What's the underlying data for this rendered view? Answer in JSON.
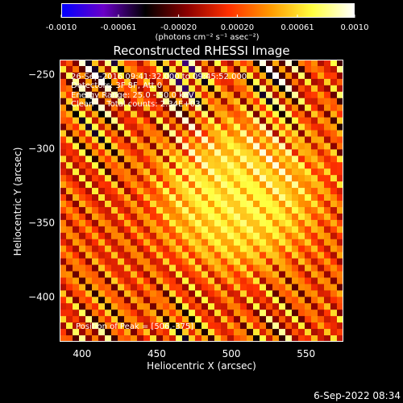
{
  "colorbar": {
    "tick_labels": [
      "-0.0010",
      "-0.00061",
      "-0.00020",
      "0.00020",
      "0.00061",
      "0.0010"
    ],
    "tick_values": [
      -0.001,
      -0.00061,
      -0.0002,
      0.0002,
      0.00061,
      0.001
    ],
    "range": [
      -0.001,
      0.001
    ],
    "units_text": "(photons cm⁻² s⁻¹ asec⁻²)",
    "colors": [
      "#0000ff",
      "#6a00c8",
      "#000000",
      "#8b0000",
      "#ff3000",
      "#ff9a00",
      "#ffff40",
      "#ffffff"
    ]
  },
  "title": "Reconstructed RHESSI Image",
  "annotations": {
    "time_range": "26-Sep-2016 09:41:32.000 to 09:45:52.000",
    "detectors": "Detectors: 3F 8F, Att 0",
    "energy": "Energy Range: 25.0 - 50.0 keV",
    "clean": "Clean     Total counts: 2.34E+03",
    "peak": "Position of Peak = [506,-375]"
  },
  "footer_timestamp": "6-Sep-2022 08:34",
  "chart_data": {
    "type": "heatmap",
    "title": "Reconstructed RHESSI Image",
    "xlabel": "Heliocentric X (arcsec)",
    "ylabel": "Heliocentric Y (arcsec)",
    "xlim": [
      385,
      575
    ],
    "ylim": [
      -430,
      -240
    ],
    "x_ticks": [
      400,
      450,
      500,
      550
    ],
    "x_tick_labels": [
      "400",
      "450",
      "500",
      "550"
    ],
    "y_ticks": [
      -250,
      -300,
      -350,
      -400
    ],
    "y_tick_labels": [
      "−250",
      "−300",
      "−350",
      "−400"
    ],
    "value_range": [
      -0.001,
      0.001
    ],
    "peak_position": [
      506,
      -375
    ],
    "source_center": [
      505,
      -330
    ],
    "source_radius_arcsec": 55,
    "grid": false
  }
}
